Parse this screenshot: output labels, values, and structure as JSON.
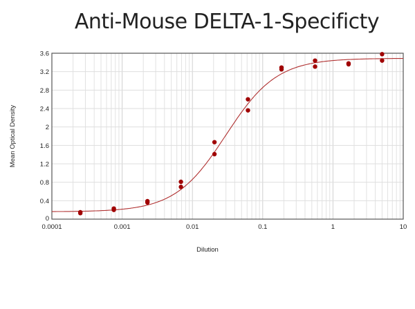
{
  "chart_data": {
    "type": "scatter",
    "title": "Anti-Mouse DELTA-1-Specificty",
    "xlabel": "Dilution",
    "ylabel": "Mean Optical Density",
    "x_scale": "log",
    "xlim": [
      0.0001,
      10
    ],
    "ylim": [
      0,
      3.6
    ],
    "x_ticks": [
      "0.0001",
      "0.001",
      "0.01",
      "0.1",
      "1",
      "10"
    ],
    "y_ticks": [
      "0",
      "0.4",
      "0.8",
      "1.2",
      "1.6",
      "2",
      "2.4",
      "2.8",
      "3.2",
      "3.6"
    ],
    "grid": true,
    "point_color": "#a00000",
    "curve_color": "#b03030",
    "points": [
      {
        "x": 5,
        "y": [
          3.58,
          3.44
        ]
      },
      {
        "x": 1.667,
        "y": [
          3.38,
          3.36
        ]
      },
      {
        "x": 0.556,
        "y": [
          3.44,
          3.31
        ]
      },
      {
        "x": 0.185,
        "y": [
          3.29,
          3.25
        ]
      },
      {
        "x": 0.0617,
        "y": [
          2.6,
          2.36
        ]
      },
      {
        "x": 0.0206,
        "y": [
          1.67,
          1.41
        ]
      },
      {
        "x": 0.00686,
        "y": [
          0.81,
          0.7
        ]
      },
      {
        "x": 0.00229,
        "y": [
          0.39,
          0.36
        ]
      },
      {
        "x": 0.000762,
        "y": [
          0.23,
          0.2
        ]
      },
      {
        "x": 0.000254,
        "y": [
          0.15,
          0.13
        ]
      }
    ],
    "fit_curve": {
      "model": "4PL",
      "bottom": 0.16,
      "top": 3.49,
      "ec50": 0.03,
      "hill": 1.2
    }
  }
}
